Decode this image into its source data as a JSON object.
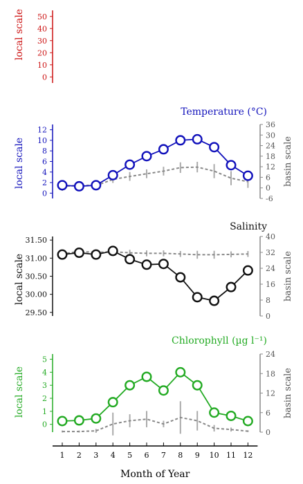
{
  "x_axis": {
    "label": "Month of Year",
    "ticks": [
      "1",
      "2",
      "3",
      "4",
      "5",
      "6",
      "7",
      "8",
      "9",
      "10",
      "11",
      "12"
    ]
  },
  "chart_data": [
    {
      "type": "line",
      "id": "top",
      "title": "",
      "color": "#cc1111",
      "left_axis": {
        "label": "local scale",
        "ylim": [
          -5,
          55
        ],
        "ticks": [
          0,
          10,
          20,
          30,
          40,
          50
        ]
      },
      "right_axis": null,
      "x": [
        1,
        2,
        3,
        4,
        5,
        6,
        7,
        8,
        9,
        10,
        11,
        12
      ],
      "series": []
    },
    {
      "type": "line",
      "id": "temperature",
      "title": "Temperature (°C)",
      "color": "#1111bb",
      "left_axis": {
        "label": "local scale",
        "ylim": [
          -1,
          13
        ],
        "ticks": [
          0,
          2,
          4,
          6,
          8,
          10,
          12
        ]
      },
      "right_axis": {
        "label": "basin scale",
        "ylim": [
          -6,
          36
        ],
        "ticks": [
          -6,
          0,
          6,
          12,
          18,
          24,
          30,
          36
        ]
      },
      "x": [
        1,
        2,
        3,
        4,
        5,
        6,
        7,
        8,
        9,
        10,
        11,
        12
      ],
      "series": [
        {
          "name": "",
          "axis": "left",
          "style": "solid-markers",
          "values": [
            1.5,
            1.3,
            1.5,
            3.4,
            5.4,
            7.0,
            8.3,
            10.0,
            10.2,
            8.7,
            5.3,
            3.3
          ]
        },
        {
          "name": "",
          "axis": "right",
          "style": "dashed-grey",
          "values": [
            0.8,
            1.5,
            1.3,
            4.8,
            6.5,
            8.0,
            9.5,
            11.5,
            11.8,
            9.5,
            5.5,
            3.5
          ],
          "spread": [
            2.5,
            1.5,
            1.0,
            2.0,
            2.5,
            2.5,
            2.5,
            3.0,
            3.0,
            4.0,
            4.0,
            3.5
          ]
        }
      ]
    },
    {
      "type": "line",
      "id": "salinity",
      "title": "Salinity",
      "color": "#111111",
      "left_axis": {
        "label": "local scale",
        "ylim": [
          29.4,
          31.6
        ],
        "ticks": [
          29.5,
          30.0,
          30.5,
          31.0,
          31.5
        ],
        "tick_labels": [
          "29.50",
          "30.00",
          "30.50",
          "31.00",
          "31.50"
        ]
      },
      "right_axis": {
        "label": "basin scale",
        "ylim": [
          0,
          40
        ],
        "ticks": [
          0,
          8,
          16,
          24,
          32,
          40
        ]
      },
      "x": [
        1,
        2,
        3,
        4,
        5,
        6,
        7,
        8,
        9,
        10,
        11,
        12
      ],
      "series": [
        {
          "name": "",
          "axis": "left",
          "style": "solid-markers",
          "values": [
            31.1,
            31.15,
            31.1,
            31.2,
            30.97,
            30.82,
            30.84,
            30.47,
            29.92,
            29.82,
            30.2,
            30.66
          ]
        },
        {
          "name": "",
          "axis": "right",
          "style": "dashed-grey",
          "values": [
            31.2,
            32.5,
            32.0,
            32.3,
            31.8,
            31.5,
            31.5,
            31.2,
            30.8,
            30.8,
            31.0,
            31.2
          ],
          "spread": [
            1.5,
            1.0,
            1.0,
            1.0,
            1.5,
            1.5,
            1.5,
            1.5,
            2.0,
            2.0,
            1.5,
            1.5
          ]
        }
      ]
    },
    {
      "type": "line",
      "id": "chlorophyll",
      "title": "Chlorophyll (µg l⁻¹)",
      "color": "#22aa22",
      "left_axis": {
        "label": "local scale",
        "ylim": [
          -0.6,
          5.4
        ],
        "ticks": [
          0,
          1,
          2,
          3,
          4,
          5
        ]
      },
      "right_axis": {
        "label": "basin scale",
        "ylim": [
          0,
          24
        ],
        "ticks": [
          0,
          6,
          12,
          18,
          24
        ]
      },
      "x": [
        1,
        2,
        3,
        4,
        5,
        6,
        7,
        8,
        9,
        10,
        11,
        12
      ],
      "series": [
        {
          "name": "",
          "axis": "left",
          "style": "solid-markers",
          "values": [
            0.25,
            0.3,
            0.45,
            1.7,
            3.0,
            3.65,
            2.6,
            4.0,
            3.0,
            0.9,
            0.65,
            0.25
          ]
        },
        {
          "name": "",
          "axis": "right",
          "style": "dashed-grey",
          "values": [
            0.2,
            0.2,
            0.4,
            2.5,
            3.5,
            4.0,
            2.5,
            4.5,
            3.5,
            1.2,
            0.8,
            0.3
          ],
          "spread": [
            0.3,
            0.3,
            0.6,
            3.5,
            2.0,
            2.5,
            1.0,
            5.0,
            3.0,
            1.0,
            0.6,
            0.3
          ]
        }
      ]
    }
  ]
}
